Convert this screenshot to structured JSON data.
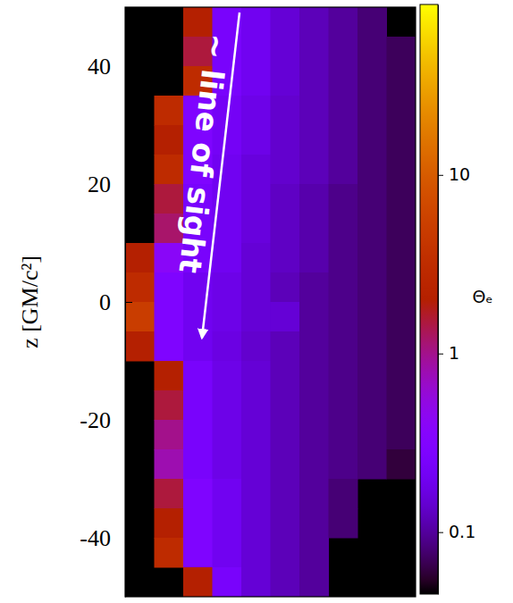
{
  "chart_data": {
    "type": "heatmap",
    "y_label": "z [GM/c²]",
    "ylim": [
      -50,
      50
    ],
    "yticks": [
      -40,
      -20,
      0,
      20,
      40
    ],
    "tick_labels": "y",
    "y_edges": [
      50,
      45,
      40,
      35,
      30,
      25,
      20,
      15,
      10,
      5,
      0,
      -5,
      -10,
      -15,
      -20,
      -25,
      -30,
      -35,
      -40,
      -45,
      -50
    ],
    "cells": [
      [
        null,
        null,
        2,
        0.25,
        0.2,
        0.15,
        0.12,
        0.1,
        0.08,
        null
      ],
      [
        null,
        null,
        1.5,
        0.25,
        0.2,
        0.15,
        0.12,
        0.1,
        0.08,
        0.07
      ],
      [
        null,
        null,
        3,
        0.25,
        0.2,
        0.15,
        0.12,
        0.1,
        0.08,
        0.07
      ],
      [
        null,
        3,
        0.3,
        0.22,
        0.18,
        0.14,
        0.12,
        0.1,
        0.08,
        0.07
      ],
      [
        null,
        2,
        0.3,
        0.22,
        0.18,
        0.14,
        0.12,
        0.1,
        0.08,
        0.07
      ],
      [
        null,
        3,
        0.3,
        0.2,
        0.16,
        0.14,
        0.12,
        0.1,
        0.08,
        0.07
      ],
      [
        null,
        1.5,
        0.25,
        0.2,
        0.16,
        0.13,
        0.11,
        0.09,
        0.08,
        0.07
      ],
      [
        null,
        1.2,
        0.25,
        0.2,
        0.16,
        0.13,
        0.11,
        0.09,
        0.08,
        0.07
      ],
      [
        2,
        0.4,
        0.25,
        0.2,
        0.15,
        0.13,
        0.11,
        0.09,
        0.08,
        0.07
      ],
      [
        3,
        0.3,
        0.2,
        0.18,
        0.15,
        0.12,
        0.1,
        0.09,
        0.08,
        0.07
      ],
      [
        5,
        0.3,
        0.2,
        0.18,
        0.15,
        0.15,
        0.1,
        0.09,
        0.08,
        0.07
      ],
      [
        2,
        0.3,
        0.2,
        0.17,
        0.14,
        0.12,
        0.1,
        0.09,
        0.08,
        0.07
      ],
      [
        null,
        2,
        0.25,
        0.18,
        0.15,
        0.12,
        0.1,
        0.09,
        0.08,
        0.07
      ],
      [
        null,
        1.5,
        0.25,
        0.18,
        0.15,
        0.12,
        0.1,
        0.09,
        0.08,
        0.07
      ],
      [
        null,
        1,
        0.25,
        0.18,
        0.15,
        0.12,
        0.1,
        0.09,
        0.08,
        0.07
      ],
      [
        null,
        0.8,
        0.25,
        0.18,
        0.15,
        0.12,
        0.1,
        0.09,
        0.08,
        0.06
      ],
      [
        null,
        1.5,
        0.3,
        0.2,
        0.15,
        0.12,
        0.1,
        0.08,
        null,
        null
      ],
      [
        null,
        2,
        0.3,
        0.2,
        0.15,
        0.12,
        0.1,
        0.08,
        null,
        null
      ],
      [
        null,
        3,
        0.3,
        0.2,
        0.15,
        0.12,
        0.1,
        null,
        null,
        null
      ],
      [
        null,
        null,
        2,
        0.25,
        0.15,
        0.12,
        0.1,
        null,
        null,
        null
      ]
    ],
    "colorbar": {
      "label": "Θₑ",
      "range": [
        0.045,
        90
      ],
      "ticks": [
        0.1,
        1,
        10
      ],
      "log": true
    },
    "annotations": [
      {
        "text": "~ line of sight"
      }
    ]
  }
}
